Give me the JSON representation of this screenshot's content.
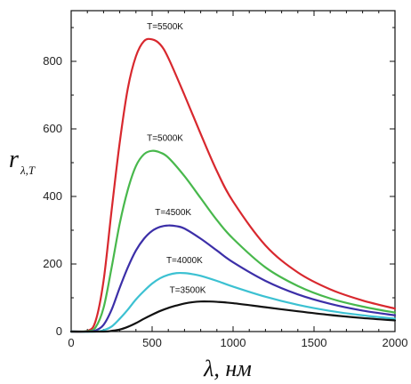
{
  "chart_data": {
    "type": "line",
    "xlabel": "λ, нм",
    "ylabel": "r",
    "ylabel_sub": "λ,T",
    "xlim": [
      0,
      2000
    ],
    "ylim": [
      0,
      950
    ],
    "xticks": [
      0,
      500,
      1000,
      1500,
      2000
    ],
    "yticks": [
      0,
      200,
      400,
      600,
      800
    ],
    "grid": false,
    "series": [
      {
        "name": "T=5500K",
        "color": "#d8282e",
        "x": [
          0,
          100,
          150,
          200,
          250,
          300,
          350,
          400,
          450,
          500,
          550,
          600,
          700,
          800,
          900,
          1000,
          1200,
          1400,
          1600,
          1800,
          2000
        ],
        "y": [
          0,
          2,
          30,
          150,
          360,
          560,
          720,
          815,
          860,
          865,
          850,
          810,
          700,
          585,
          475,
          385,
          255,
          175,
          125,
          92,
          68
        ]
      },
      {
        "name": "T=5000K",
        "color": "#48b84c",
        "x": [
          0,
          100,
          150,
          200,
          250,
          300,
          350,
          400,
          450,
          500,
          550,
          600,
          700,
          800,
          900,
          1000,
          1200,
          1400,
          1600,
          1800,
          2000
        ],
        "y": [
          0,
          1,
          12,
          70,
          190,
          320,
          420,
          490,
          525,
          535,
          530,
          515,
          460,
          395,
          330,
          275,
          190,
          135,
          98,
          74,
          56
        ]
      },
      {
        "name": "T=4500K",
        "color": "#3c2fa8",
        "x": [
          0,
          100,
          150,
          200,
          250,
          300,
          350,
          400,
          450,
          500,
          550,
          600,
          650,
          700,
          800,
          900,
          1000,
          1200,
          1400,
          1600,
          1800,
          2000
        ],
        "y": [
          0,
          0,
          3,
          20,
          65,
          130,
          190,
          240,
          275,
          298,
          310,
          314,
          312,
          305,
          275,
          240,
          205,
          150,
          110,
          82,
          62,
          48
        ]
      },
      {
        "name": "T=4000K",
        "color": "#3cc1d2",
        "x": [
          0,
          150,
          200,
          250,
          300,
          350,
          400,
          450,
          500,
          550,
          600,
          650,
          700,
          750,
          800,
          900,
          1000,
          1200,
          1400,
          1600,
          1800,
          2000
        ],
        "y": [
          0,
          0,
          4,
          15,
          38,
          65,
          95,
          120,
          142,
          158,
          168,
          173,
          173,
          170,
          165,
          150,
          133,
          103,
          79,
          61,
          48,
          38
        ]
      },
      {
        "name": "T=3500K",
        "color": "#111111",
        "x": [
          0,
          200,
          250,
          300,
          350,
          400,
          450,
          500,
          550,
          600,
          650,
          700,
          750,
          800,
          850,
          900,
          1000,
          1200,
          1400,
          1600,
          1800,
          2000
        ],
        "y": [
          0,
          0,
          2,
          6,
          14,
          25,
          38,
          50,
          61,
          70,
          77,
          83,
          87,
          89,
          89,
          88,
          84,
          72,
          60,
          49,
          40,
          33
        ]
      }
    ],
    "annotations": [
      {
        "text": "T=5500K",
        "series": "T=5500K",
        "x": 580,
        "y": 895
      },
      {
        "text": "T=5000K",
        "series": "T=5000K",
        "x": 580,
        "y": 565
      },
      {
        "text": "T=4500K",
        "series": "T=4500K",
        "x": 630,
        "y": 345
      },
      {
        "text": "T=4000K",
        "series": "T=4000K",
        "x": 700,
        "y": 203
      },
      {
        "text": "T=3500K",
        "series": "T=3500K",
        "x": 720,
        "y": 115
      }
    ]
  }
}
